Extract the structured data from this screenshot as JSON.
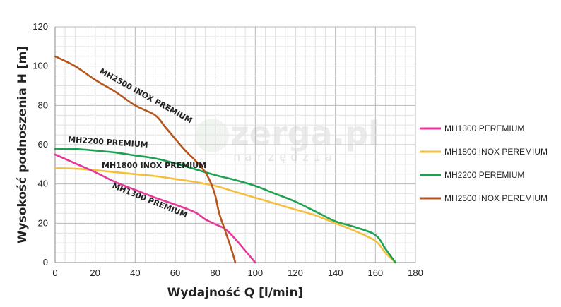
{
  "watermark": {
    "brand": "zerga.pl",
    "sub": "narzędzia"
  },
  "chart_data": {
    "type": "line",
    "xlabel": "Wydajność Q [l/min]",
    "ylabel": "Wysokość podnoszenia H [m]",
    "xlim": [
      0,
      180
    ],
    "ylim": [
      0,
      120
    ],
    "xticks": [
      0,
      20,
      40,
      60,
      80,
      100,
      120,
      140,
      160,
      180
    ],
    "yticks": [
      0,
      20,
      40,
      60,
      80,
      100,
      120
    ],
    "grid": true,
    "legend_position": "right",
    "series": [
      {
        "name": "MH1300 PEREMIUM",
        "curve_label": "MH1300 PREMIUM",
        "color": "#e4379a",
        "x": [
          0,
          10,
          20,
          30,
          40,
          50,
          60,
          70,
          75,
          80,
          85,
          90,
          95,
          100
        ],
        "y": [
          55,
          50.5,
          46,
          41,
          37,
          33,
          29.5,
          25.5,
          22,
          19.5,
          17,
          12,
          6,
          0
        ]
      },
      {
        "name": "MH1800 INOX PEREMIUM",
        "curve_label": "MH1800 INOX PREMIUM",
        "color": "#f4bf3f",
        "x": [
          0,
          10,
          20,
          30,
          40,
          50,
          60,
          70,
          80,
          90,
          100,
          110,
          120,
          130,
          140,
          150,
          160,
          165,
          170
        ],
        "y": [
          48,
          47.8,
          47,
          46,
          45,
          44,
          42.5,
          41,
          39,
          36,
          33,
          30,
          27,
          24,
          20,
          16,
          11,
          5,
          0
        ]
      },
      {
        "name": "MH2200 PEREMIUM",
        "curve_label": "MH2200 PREMIUM",
        "color": "#1ea152",
        "x": [
          0,
          10,
          20,
          30,
          40,
          50,
          60,
          70,
          80,
          90,
          100,
          110,
          120,
          130,
          140,
          150,
          160,
          165,
          170
        ],
        "y": [
          58,
          57.8,
          57,
          56,
          54.5,
          53,
          50.5,
          47.5,
          44.5,
          42,
          39,
          35,
          31,
          26,
          21,
          18,
          14,
          7,
          0
        ]
      },
      {
        "name": "MH2500 INOX PEREMIUM",
        "curve_label": "MH2500 INOX PREMIUM",
        "color": "#b5561e",
        "x": [
          0,
          10,
          20,
          30,
          40,
          50,
          55,
          60,
          65,
          70,
          75,
          78,
          80,
          82,
          85,
          88,
          90
        ],
        "y": [
          105,
          100,
          93,
          87,
          80,
          75,
          69,
          63,
          57,
          52,
          46,
          40,
          34,
          25,
          16,
          7,
          0
        ]
      }
    ]
  }
}
